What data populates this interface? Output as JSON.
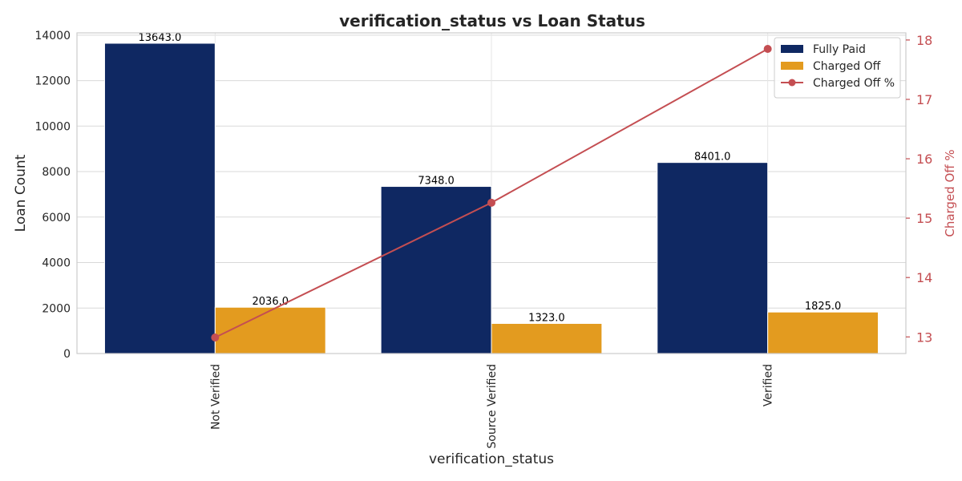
{
  "chart_data": {
    "type": "bar",
    "title": "verification_status vs Loan Status",
    "xlabel": "verification_status",
    "ylabel": "Loan Count",
    "y2label": "Charged Off %",
    "categories": [
      "Not Verified",
      "Source Verified",
      "Verified"
    ],
    "series": [
      {
        "name": "Fully Paid",
        "values": [
          13643.0,
          7348.0,
          8401.0
        ],
        "labels": [
          "13643.0",
          "7348.0",
          "8401.0"
        ],
        "color": "#0f2862"
      },
      {
        "name": "Charged Off",
        "values": [
          2036.0,
          1323.0,
          1825.0
        ],
        "labels": [
          "2036.0",
          "1323.0",
          "1825.0"
        ],
        "color": "#e39b1f"
      }
    ],
    "line_series": {
      "name": "Charged Off %",
      "values": [
        12.99,
        15.26,
        17.85
      ],
      "color": "#c44e52",
      "axis": "right"
    },
    "ylim": [
      0,
      14100
    ],
    "yticks": [
      0,
      2000,
      4000,
      6000,
      8000,
      10000,
      12000,
      14000
    ],
    "y2lim": [
      12.72,
      18.12
    ],
    "y2ticks": [
      13,
      14,
      15,
      16,
      17,
      18
    ],
    "grid": true,
    "legend_position": "top-right"
  }
}
